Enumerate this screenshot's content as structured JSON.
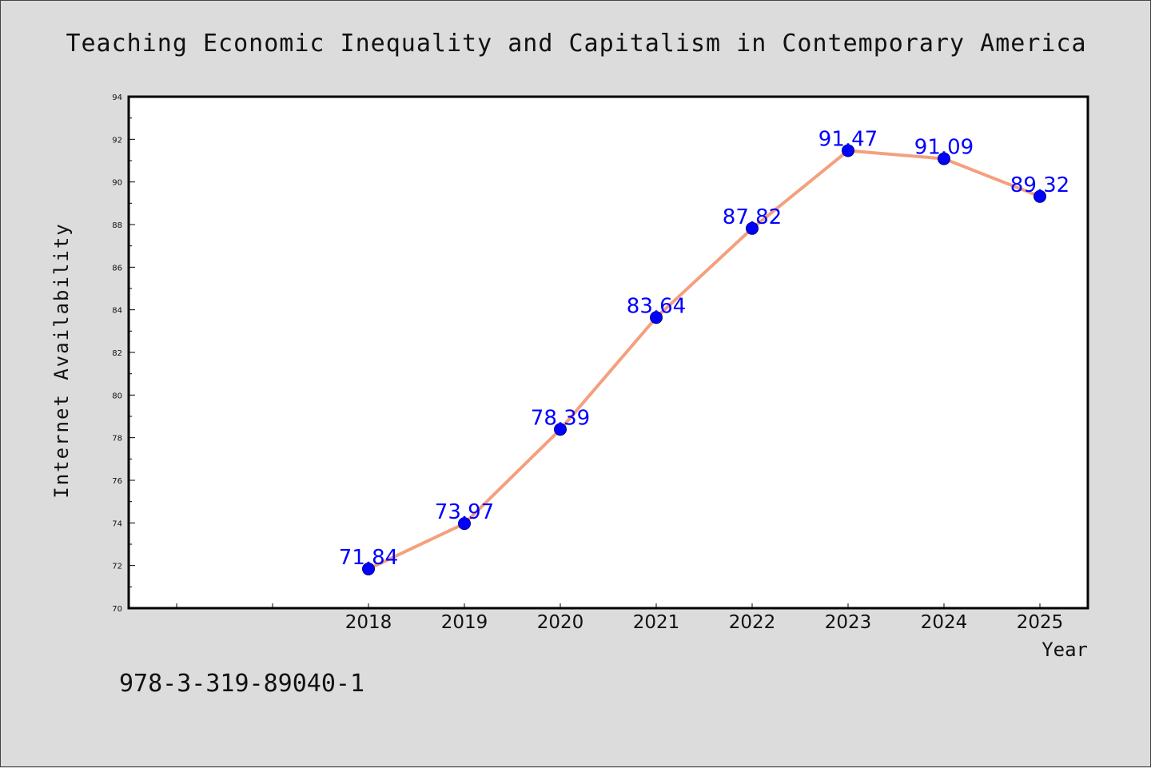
{
  "chart_data": {
    "type": "line",
    "title": "Teaching Economic Inequality and Capitalism in Contemporary America",
    "xlabel": "Year",
    "ylabel": "Internet Availability",
    "categories": [
      "2018",
      "2019",
      "2020",
      "2021",
      "2022",
      "2023",
      "2024",
      "2025"
    ],
    "series": [
      {
        "values": [
          71.84,
          73.97,
          78.39,
          83.64,
          87.82,
          91.47,
          91.09,
          89.32
        ],
        "labels": [
          "71.84",
          "73.97",
          "78.39",
          "83.64",
          "87.82",
          "91.47",
          "91.09",
          "89.32"
        ]
      }
    ],
    "ylim": [
      70,
      94
    ],
    "yticks": [
      "70",
      "72",
      "74",
      "76",
      "78",
      "80",
      "82",
      "84",
      "86",
      "88",
      "90",
      "92",
      "94"
    ],
    "grid": false,
    "legend": "none",
    "colors": {
      "line": "#f4a07e",
      "marker": "#0000ff",
      "marker_edge": "#00008b",
      "data_label": "#0000ff",
      "background": "#dcdcdc",
      "plot_area": "#ffffff"
    }
  },
  "footnote": "978-3-319-89040-1"
}
